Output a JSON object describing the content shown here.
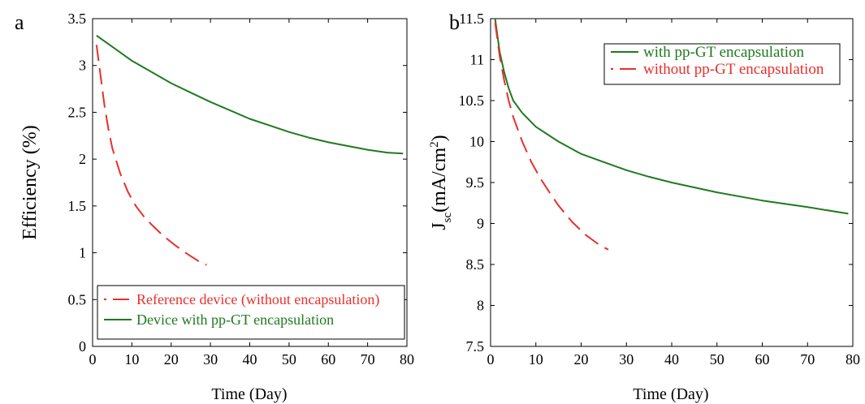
{
  "chart_data": [
    {
      "type": "line",
      "panel_label": "a",
      "xlabel": "Time (Day)",
      "ylabel": "Efficiency (%)",
      "xlim": [
        0,
        80
      ],
      "ylim": [
        0,
        3.5
      ],
      "x_ticks": [
        "0",
        "10",
        "20",
        "30",
        "40",
        "50",
        "60",
        "70",
        "80"
      ],
      "y_ticks": [
        "0",
        "0.5",
        "1",
        "1.5",
        "2",
        "2.5",
        "3",
        "3.5"
      ],
      "grid": false,
      "legend_position": "bottom-left",
      "series": [
        {
          "name": "Reference device (without encapsulation)",
          "color": "#e8302a",
          "style": "dashed",
          "x": [
            1,
            2,
            3,
            4,
            5,
            7,
            9,
            11,
            13,
            15,
            18,
            21,
            24,
            27,
            29
          ],
          "y": [
            3.22,
            2.9,
            2.58,
            2.33,
            2.12,
            1.85,
            1.65,
            1.5,
            1.39,
            1.3,
            1.18,
            1.08,
            0.99,
            0.91,
            0.87
          ]
        },
        {
          "name": "Device with pp-GT encapsulation",
          "color": "#1f7a1f",
          "style": "solid",
          "x": [
            1,
            5,
            10,
            15,
            20,
            25,
            30,
            35,
            40,
            45,
            50,
            55,
            60,
            65,
            70,
            75,
            79
          ],
          "y": [
            3.32,
            3.2,
            3.05,
            2.93,
            2.81,
            2.71,
            2.61,
            2.52,
            2.43,
            2.36,
            2.29,
            2.23,
            2.18,
            2.14,
            2.1,
            2.07,
            2.06
          ]
        }
      ]
    },
    {
      "type": "line",
      "panel_label": "b",
      "xlabel": "Time (Day)",
      "ylabel": "J",
      "ylabel_sub": "sc",
      "ylabel_unit": "(mA/cm",
      "ylabel_sup": "2",
      "ylabel_end": ")",
      "xlim": [
        0,
        80
      ],
      "ylim": [
        7.5,
        11.5
      ],
      "x_ticks": [
        "0",
        "10",
        "20",
        "30",
        "40",
        "50",
        "60",
        "70",
        "80"
      ],
      "y_ticks": [
        "7.5",
        "8",
        "8.5",
        "9",
        "9.5",
        "10",
        "10.5",
        "11",
        "11.5"
      ],
      "grid": false,
      "legend_position": "top-right",
      "series": [
        {
          "name": "with pp-GT encapsulation",
          "color": "#1f7a1f",
          "style": "solid",
          "x": [
            1,
            2,
            3,
            4,
            5,
            7,
            10,
            15,
            20,
            25,
            30,
            35,
            40,
            50,
            60,
            70,
            79
          ],
          "y": [
            11.5,
            11.1,
            10.85,
            10.65,
            10.5,
            10.35,
            10.18,
            10.0,
            9.85,
            9.75,
            9.65,
            9.57,
            9.5,
            9.38,
            9.28,
            9.2,
            9.12
          ]
        },
        {
          "name": "without pp-GT encapsulation",
          "color": "#e8302a",
          "style": "dashed",
          "x": [
            1,
            2,
            3,
            4,
            5,
            7,
            9,
            11,
            13,
            15,
            18,
            21,
            24,
            26
          ],
          "y": [
            11.45,
            11.05,
            10.75,
            10.5,
            10.3,
            10.0,
            9.75,
            9.55,
            9.38,
            9.22,
            9.02,
            8.86,
            8.74,
            8.68
          ]
        }
      ]
    }
  ]
}
